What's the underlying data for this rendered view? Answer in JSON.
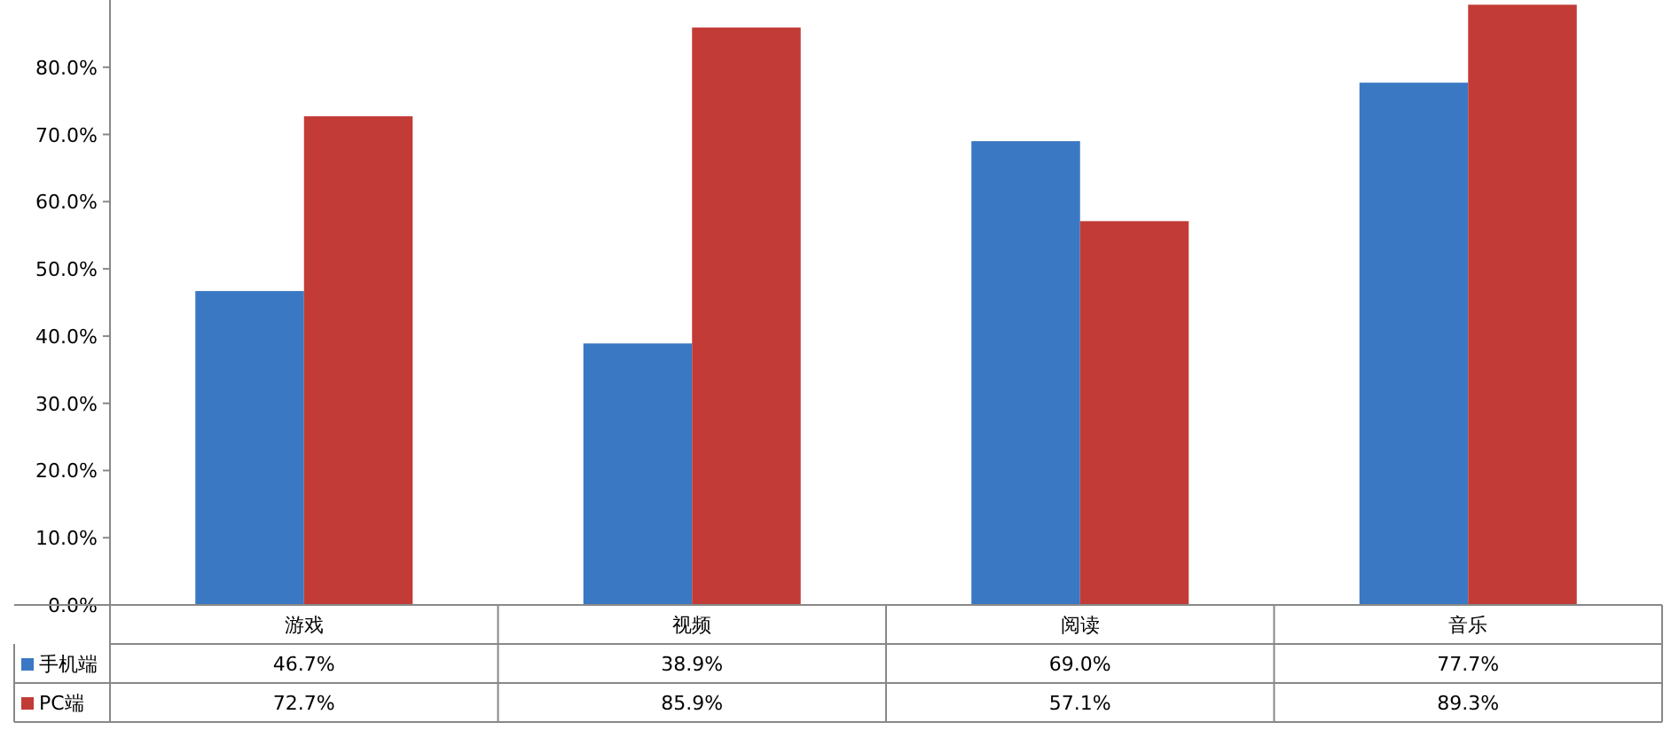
{
  "chart_data": {
    "type": "bar",
    "categories": [
      "游戏",
      "视频",
      "阅读",
      "音乐"
    ],
    "series": [
      {
        "name": "手机端",
        "color": "#3a78c4",
        "values": [
          46.7,
          38.9,
          69.0,
          77.7
        ],
        "value_labels": [
          "46.7%",
          "38.9%",
          "69.0%",
          "77.7%"
        ]
      },
      {
        "name": "PC端",
        "color": "#c23b36",
        "values": [
          72.7,
          85.9,
          57.1,
          89.3
        ],
        "value_labels": [
          "72.7%",
          "85.9%",
          "57.1%",
          "89.3%"
        ]
      }
    ],
    "ylim": [
      0,
      90
    ],
    "yticks": [
      {
        "value": 0,
        "label": "0.0%"
      },
      {
        "value": 10,
        "label": "10.0%"
      },
      {
        "value": 20,
        "label": "20.0%"
      },
      {
        "value": 30,
        "label": "30.0%"
      },
      {
        "value": 40,
        "label": "40.0%"
      },
      {
        "value": 50,
        "label": "50.0%"
      },
      {
        "value": 60,
        "label": "60.0%"
      },
      {
        "value": 70,
        "label": "70.0%"
      },
      {
        "value": 80,
        "label": "80.0%"
      }
    ],
    "legend": "bottom left"
  }
}
